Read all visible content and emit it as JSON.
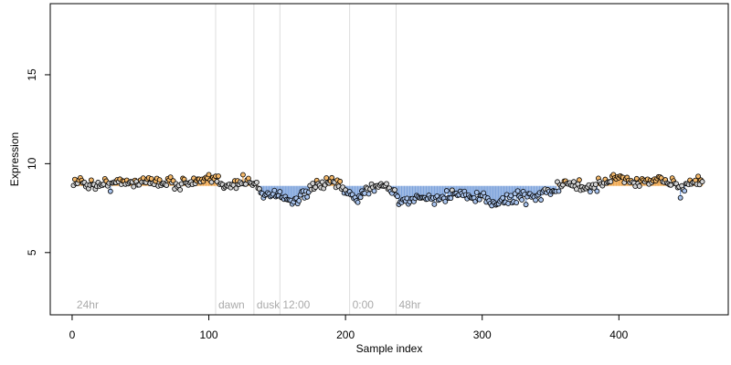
{
  "chart_data": {
    "type": "scatter",
    "title": "",
    "xlabel": "Sample index",
    "ylabel": "Expression",
    "xlim": [
      -16,
      480
    ],
    "ylim": [
      1.5,
      19
    ],
    "x_ticks": [
      0,
      100,
      200,
      300,
      400
    ],
    "y_ticks": [
      5,
      10,
      15
    ],
    "grid": false,
    "legend": "none",
    "colors": {
      "point_high": "#f5b96a",
      "point_low": "#a9c4ee",
      "point_mid": "#d3d3d3",
      "segment_high": "#f0a64a",
      "segment_low": "#7fa4dc",
      "phase_line": "#dddddd",
      "phase_text": "#aaaaaa"
    },
    "phase_markers": [
      {
        "x": 105,
        "label": "dawn"
      },
      {
        "x": 133,
        "label": "dusk"
      },
      {
        "x": 152,
        "label": "12:00"
      },
      {
        "x": 203,
        "label": "0:00"
      },
      {
        "x": 237,
        "label": "48hr"
      }
    ],
    "start_label": {
      "x": 2,
      "label": "24hr"
    },
    "baseline": 8.75,
    "anchors": [
      [
        1,
        9.0
      ],
      [
        20,
        8.8
      ],
      [
        40,
        9.0
      ],
      [
        60,
        9.0
      ],
      [
        80,
        8.9
      ],
      [
        95,
        9.0
      ],
      [
        105,
        9.1
      ],
      [
        115,
        8.8
      ],
      [
        125,
        9.0
      ],
      [
        133,
        8.9
      ],
      [
        140,
        8.3
      ],
      [
        150,
        8.3
      ],
      [
        160,
        7.9
      ],
      [
        170,
        8.2
      ],
      [
        180,
        8.8
      ],
      [
        190,
        9.0
      ],
      [
        200,
        8.4
      ],
      [
        208,
        8.0
      ],
      [
        215,
        8.5
      ],
      [
        225,
        8.9
      ],
      [
        235,
        8.5
      ],
      [
        240,
        7.8
      ],
      [
        250,
        8.0
      ],
      [
        260,
        8.1
      ],
      [
        270,
        8.0
      ],
      [
        280,
        8.4
      ],
      [
        290,
        8.1
      ],
      [
        300,
        8.0
      ],
      [
        310,
        7.8
      ],
      [
        320,
        8.0
      ],
      [
        330,
        8.2
      ],
      [
        340,
        8.2
      ],
      [
        350,
        8.5
      ],
      [
        360,
        8.8
      ],
      [
        370,
        8.8
      ],
      [
        380,
        8.6
      ],
      [
        390,
        9.0
      ],
      [
        400,
        9.3
      ],
      [
        410,
        8.9
      ],
      [
        420,
        9.1
      ],
      [
        430,
        9.0
      ],
      [
        440,
        9.0
      ],
      [
        445,
        8.5
      ],
      [
        450,
        8.8
      ],
      [
        460,
        9.0
      ]
    ],
    "n_points": 461
  }
}
